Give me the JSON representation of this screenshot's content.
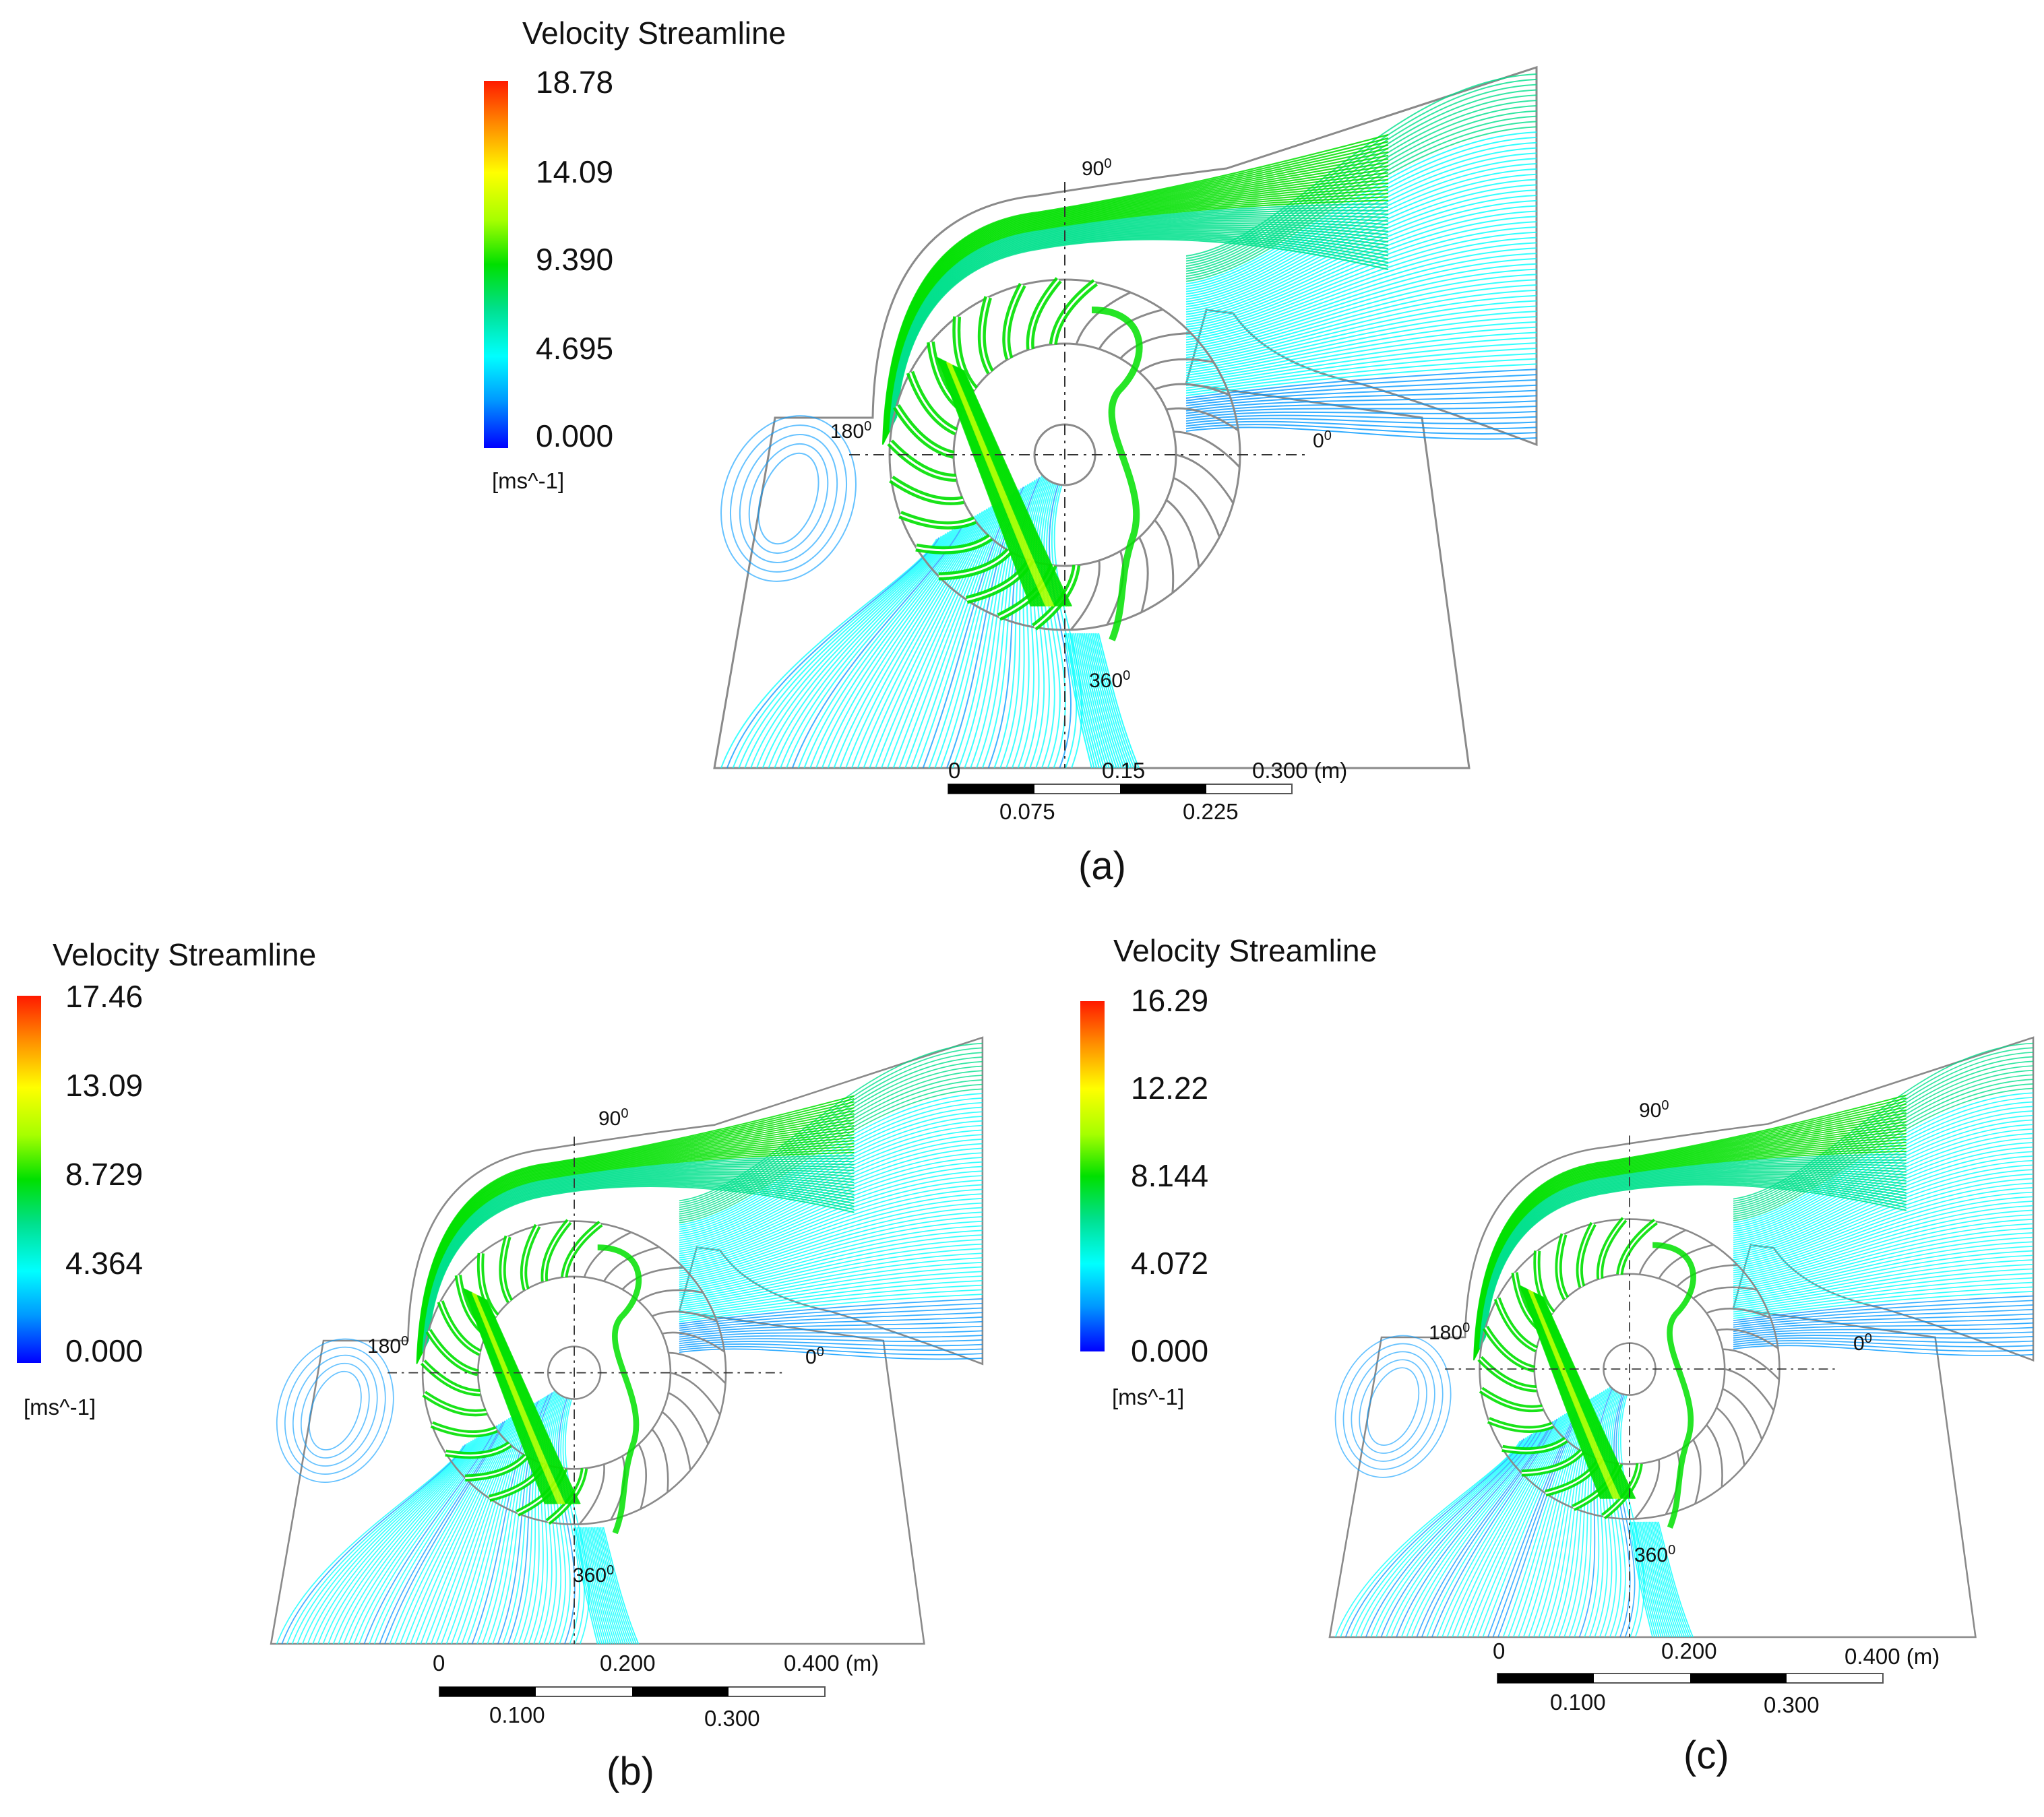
{
  "colors": {
    "colormap": [
      "#0000ff",
      "#0099ff",
      "#00ffff",
      "#00e08c",
      "#00e000",
      "#a6ff00",
      "#ffff00",
      "#ff8c00",
      "#ff1a00"
    ],
    "outline": "#8a8a8a",
    "axis": "#333333",
    "bar_black": "#000000"
  },
  "panels": [
    {
      "label": "(a)",
      "legend_title": "Velocity Streamline",
      "legend_values": [
        "18.78",
        "14.09",
        "9.390",
        "4.695",
        "0.000"
      ],
      "unit": "[ms^-1]",
      "angles": {
        "top": "90",
        "left": "180",
        "right": "0",
        "bottom": "360",
        "sup": "0"
      },
      "scale_top": [
        "0",
        "0.15",
        "0.300 (m)"
      ],
      "scale_bottom": [
        "0.075",
        "0.225"
      ]
    },
    {
      "label": "(b)",
      "legend_title": "Velocity Streamline",
      "legend_values": [
        "17.46",
        "13.09",
        "8.729",
        "4.364",
        "0.000"
      ],
      "unit": "[ms^-1]",
      "angles": {
        "top": "90",
        "left": "180",
        "right": "0",
        "bottom": "360",
        "sup": "0"
      },
      "scale_top": [
        "0",
        "0.200",
        "0.400 (m)"
      ],
      "scale_bottom": [
        "0.100",
        "0.300"
      ]
    },
    {
      "label": "(c)",
      "legend_title": "Velocity Streamline",
      "legend_values": [
        "16.29",
        "12.22",
        "8.144",
        "4.072",
        "0.000"
      ],
      "unit": "[ms^-1]",
      "angles": {
        "top": "90",
        "left": "180",
        "right": "0",
        "bottom": "360",
        "sup": "0"
      },
      "scale_top": [
        "0",
        "0.200",
        "0.400 (m)"
      ],
      "scale_bottom": [
        "0.100",
        "0.300"
      ]
    }
  ]
}
